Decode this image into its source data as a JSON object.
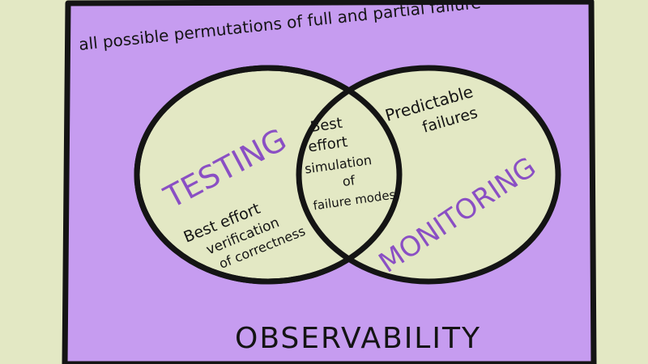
{
  "diagram": {
    "outer_caption": "all possible permutations of full and partial failure",
    "outer_label": "OBSERVABILITY",
    "left_circle": {
      "title": "TESTING",
      "desc_line1": "Best effort",
      "desc_line2": "verification",
      "desc_line3": "of correctness"
    },
    "right_circle": {
      "title": "MONITORING",
      "desc_line1": "Predictable",
      "desc_line2": "failures"
    },
    "intersection": {
      "line1": "Best",
      "line2": "effort",
      "line3": "simulation",
      "line4": "of",
      "line5": "failure modes"
    }
  },
  "colors": {
    "background": "#e3e8c4",
    "box_fill": "#c69cf0",
    "circle_fill": "#e3e8c4",
    "stroke": "#141414",
    "title_purple": "#8a4fc4"
  }
}
